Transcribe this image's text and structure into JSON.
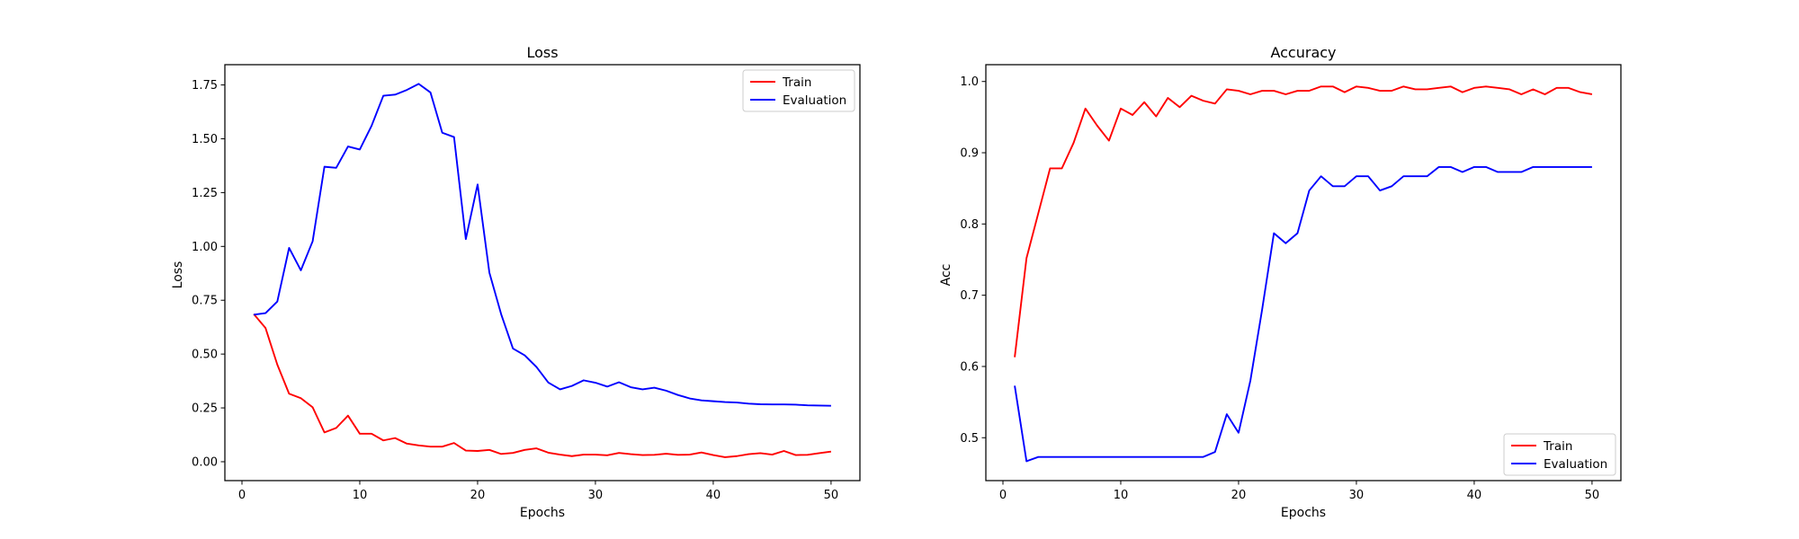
{
  "chart_data": [
    {
      "type": "line",
      "title": "Loss",
      "xlabel": "Epochs",
      "ylabel": "Loss",
      "xlim": [
        -1.45,
        52.45
      ],
      "ylim": [
        -0.0877,
        1.8441
      ],
      "xticks": [
        0,
        10,
        20,
        30,
        40,
        50
      ],
      "xtick_labels": [
        "0",
        "10",
        "20",
        "30",
        "40",
        "50"
      ],
      "yticks": [
        0,
        0.25,
        0.5,
        0.75,
        1.0,
        1.25,
        1.5,
        1.75
      ],
      "ytick_labels": [
        "0.00",
        "0.25",
        "0.50",
        "0.75",
        "1.00",
        "1.25",
        "1.50",
        "1.75"
      ],
      "legend_position": "upper right",
      "x": [
        1,
        2,
        3,
        4,
        5,
        6,
        7,
        8,
        9,
        10,
        11,
        12,
        13,
        14,
        15,
        16,
        17,
        18,
        19,
        20,
        21,
        22,
        23,
        24,
        25,
        26,
        27,
        28,
        29,
        30,
        31,
        32,
        33,
        34,
        35,
        36,
        37,
        38,
        39,
        40,
        41,
        42,
        43,
        44,
        45,
        46,
        47,
        48,
        49,
        50
      ],
      "series": [
        {
          "name": "Train",
          "color": "#ff0000",
          "values": [
            0.686,
            0.621,
            0.451,
            0.316,
            0.295,
            0.253,
            0.136,
            0.157,
            0.214,
            0.13,
            0.13,
            0.099,
            0.11,
            0.084,
            0.076,
            0.07,
            0.07,
            0.087,
            0.052,
            0.05,
            0.055,
            0.036,
            0.041,
            0.055,
            0.062,
            0.042,
            0.033,
            0.026,
            0.033,
            0.033,
            0.03,
            0.041,
            0.035,
            0.031,
            0.032,
            0.037,
            0.032,
            0.033,
            0.043,
            0.031,
            0.021,
            0.026,
            0.035,
            0.04,
            0.033,
            0.05,
            0.031,
            0.032,
            0.04,
            0.047
          ]
        },
        {
          "name": "Evaluation",
          "color": "#0000ff",
          "values": [
            0.683,
            0.69,
            0.744,
            0.993,
            0.889,
            1.024,
            1.37,
            1.365,
            1.464,
            1.45,
            1.56,
            1.7,
            1.705,
            1.727,
            1.755,
            1.715,
            1.528,
            1.508,
            1.034,
            1.288,
            0.878,
            0.685,
            0.526,
            0.494,
            0.44,
            0.368,
            0.336,
            0.352,
            0.378,
            0.367,
            0.349,
            0.369,
            0.346,
            0.336,
            0.344,
            0.33,
            0.31,
            0.294,
            0.285,
            0.281,
            0.277,
            0.275,
            0.27,
            0.267,
            0.266,
            0.266,
            0.265,
            0.262,
            0.261,
            0.26
          ]
        }
      ]
    },
    {
      "type": "line",
      "title": "Accuracy",
      "xlabel": "Epochs",
      "ylabel": "Acc",
      "xlim": [
        -1.45,
        52.45
      ],
      "ylim": [
        0.4398,
        1.0236
      ],
      "xticks": [
        0,
        10,
        20,
        30,
        40,
        50
      ],
      "xtick_labels": [
        "0",
        "10",
        "20",
        "30",
        "40",
        "50"
      ],
      "yticks": [
        0.5,
        0.6,
        0.7,
        0.8,
        0.9,
        1.0
      ],
      "ytick_labels": [
        "0.5",
        "0.6",
        "0.7",
        "0.8",
        "0.9",
        "1.0"
      ],
      "legend_position": "lower right",
      "x": [
        1,
        2,
        3,
        4,
        5,
        6,
        7,
        8,
        9,
        10,
        11,
        12,
        13,
        14,
        15,
        16,
        17,
        18,
        19,
        20,
        21,
        22,
        23,
        24,
        25,
        26,
        27,
        28,
        29,
        30,
        31,
        32,
        33,
        34,
        35,
        36,
        37,
        38,
        39,
        40,
        41,
        42,
        43,
        44,
        45,
        46,
        47,
        48,
        49,
        50
      ],
      "series": [
        {
          "name": "Train",
          "color": "#ff0000",
          "values": [
            0.613,
            0.752,
            0.815,
            0.878,
            0.878,
            0.914,
            0.962,
            0.938,
            0.917,
            0.962,
            0.953,
            0.971,
            0.951,
            0.977,
            0.964,
            0.98,
            0.973,
            0.969,
            0.989,
            0.987,
            0.982,
            0.987,
            0.987,
            0.982,
            0.987,
            0.987,
            0.993,
            0.993,
            0.985,
            0.993,
            0.991,
            0.987,
            0.987,
            0.993,
            0.989,
            0.989,
            0.991,
            0.993,
            0.985,
            0.991,
            0.993,
            0.991,
            0.989,
            0.982,
            0.989,
            0.982,
            0.991,
            0.991,
            0.985,
            0.982
          ]
        },
        {
          "name": "Evaluation",
          "color": "#0000ff",
          "values": [
            0.573,
            0.467,
            0.473,
            0.473,
            0.473,
            0.473,
            0.473,
            0.473,
            0.473,
            0.473,
            0.473,
            0.473,
            0.473,
            0.473,
            0.473,
            0.473,
            0.473,
            0.48,
            0.533,
            0.507,
            0.58,
            0.68,
            0.787,
            0.773,
            0.787,
            0.847,
            0.867,
            0.853,
            0.853,
            0.867,
            0.867,
            0.847,
            0.853,
            0.867,
            0.867,
            0.867,
            0.88,
            0.88,
            0.873,
            0.88,
            0.88,
            0.873,
            0.873,
            0.873,
            0.88,
            0.88,
            0.88,
            0.88,
            0.88,
            0.88
          ]
        }
      ]
    }
  ]
}
